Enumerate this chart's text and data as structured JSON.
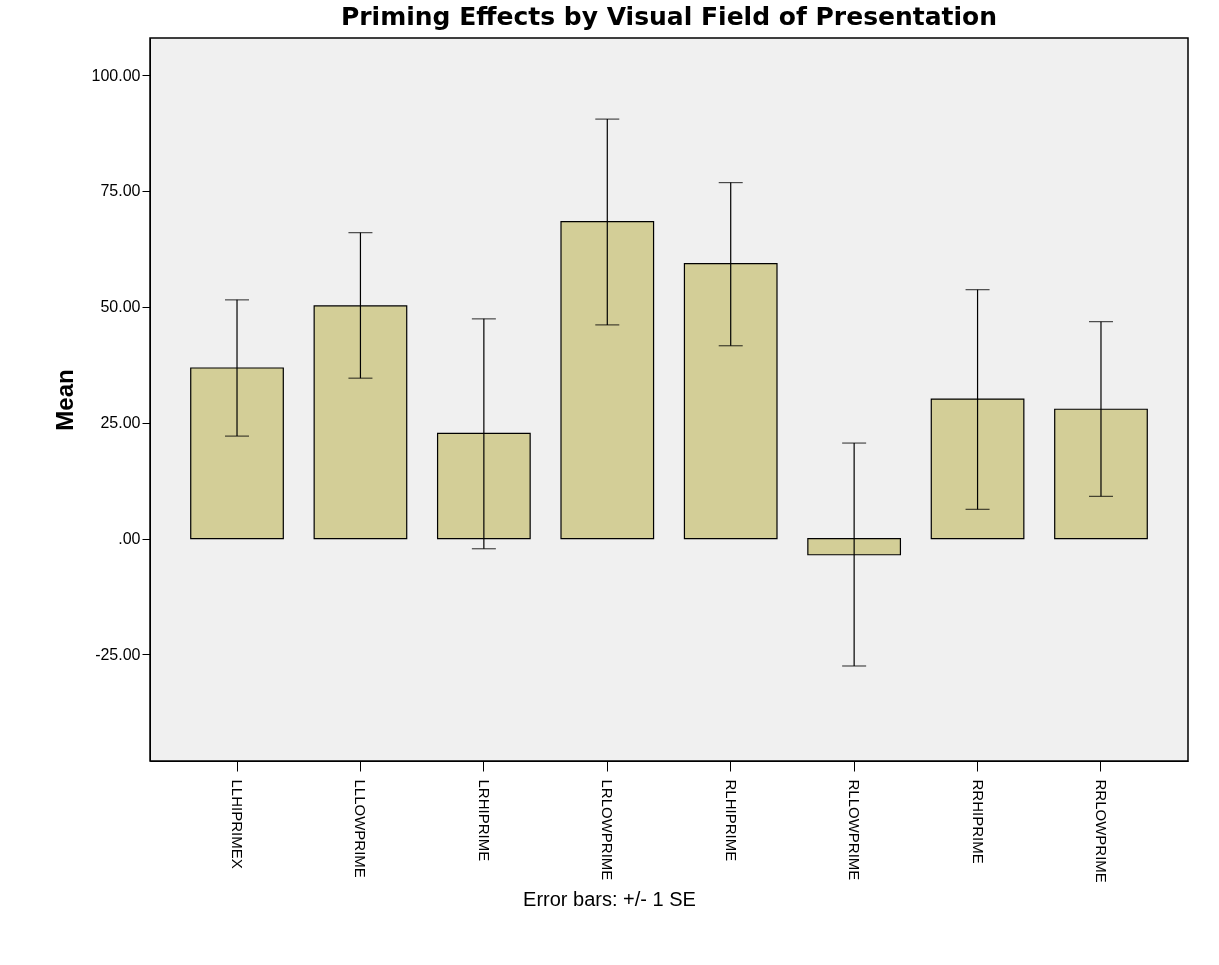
{
  "chart_data": {
    "type": "bar",
    "title": "Priming Effects by Visual Field of Presentation",
    "ylabel": "Mean",
    "categories": [
      "LLHIPRIMEX",
      "LLLOWPRIME",
      "LRHIPRIME",
      "LRLOWPRIME",
      "RLHIPRIME",
      "RLLOWPRIME",
      "RRHIPRIME",
      "RRLOWPRIME"
    ],
    "values": [
      36.8,
      50.2,
      22.7,
      68.4,
      59.3,
      -3.5,
      30.1,
      27.9
    ],
    "errors": [
      [
        22.1,
        51.5
      ],
      [
        34.6,
        66.0
      ],
      [
        -2.2,
        47.4
      ],
      [
        46.1,
        90.5
      ],
      [
        41.6,
        76.8
      ],
      [
        -27.5,
        20.6
      ],
      [
        6.3,
        53.7
      ],
      [
        9.1,
        46.8
      ]
    ],
    "color": "#d3ce97",
    "ylim": [
      -48,
      108
    ],
    "yticks": [
      {
        "value": -25,
        "label": "-25.00"
      },
      {
        "value": 0,
        "label": ".00"
      },
      {
        "value": 25,
        "label": "25.00"
      },
      {
        "value": 50,
        "label": "50.00"
      },
      {
        "value": 75,
        "label": "75.00"
      },
      {
        "value": 100,
        "label": "100.00"
      }
    ],
    "grid": false,
    "annotations": [
      "Error bars: +/- 1 SE"
    ]
  }
}
